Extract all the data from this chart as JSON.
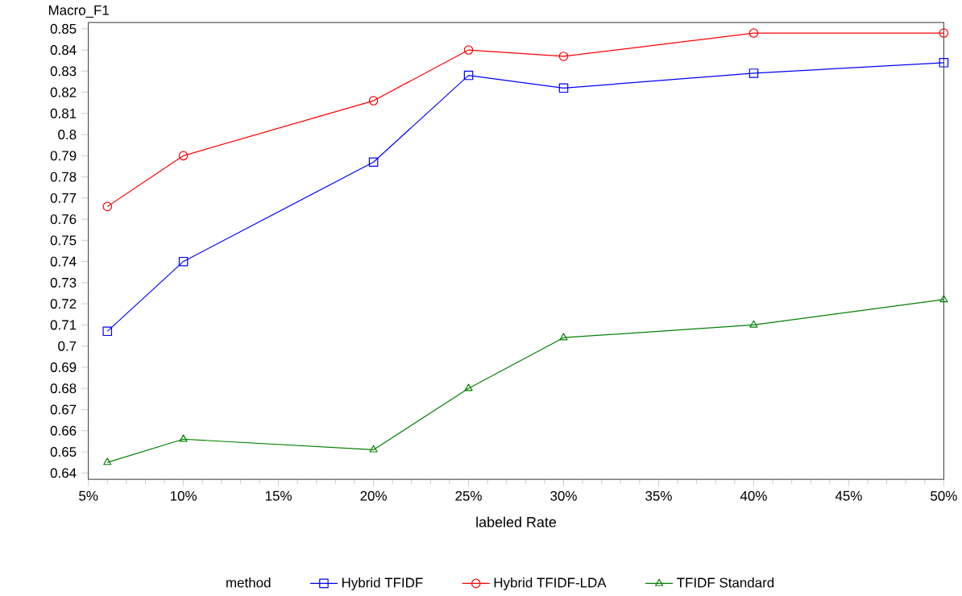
{
  "chart_data": {
    "type": "line",
    "xlabel": "labeled Rate",
    "ylabel": "Macro_F1",
    "legend_title": "method",
    "legend": "bottom",
    "grid": false,
    "x": [
      6,
      10,
      20,
      25,
      30,
      40,
      50
    ],
    "xlim": [
      5,
      50
    ],
    "xticks": [
      {
        "value": 5,
        "label": "5%"
      },
      {
        "value": 10,
        "label": "10%"
      },
      {
        "value": 15,
        "label": "15%"
      },
      {
        "value": 20,
        "label": "20%"
      },
      {
        "value": 25,
        "label": "25%"
      },
      {
        "value": 30,
        "label": "30%"
      },
      {
        "value": 35,
        "label": "35%"
      },
      {
        "value": 40,
        "label": "40%"
      },
      {
        "value": 45,
        "label": "45%"
      },
      {
        "value": 50,
        "label": "50%"
      }
    ],
    "ylim": [
      0.637,
      0.853
    ],
    "yticks": [
      0.64,
      0.65,
      0.66,
      0.67,
      0.68,
      0.69,
      0.7,
      0.71,
      0.72,
      0.73,
      0.74,
      0.75,
      0.76,
      0.77,
      0.78,
      0.79,
      0.8,
      0.81,
      0.82,
      0.83,
      0.84,
      0.85
    ],
    "series": [
      {
        "name": "Hybrid TFIDF",
        "color": "#0000ff",
        "marker": "square",
        "values": [
          0.707,
          0.74,
          0.787,
          0.828,
          0.822,
          0.829,
          0.834
        ]
      },
      {
        "name": "Hybrid TFIDF-LDA",
        "color": "#ff0000",
        "marker": "circle",
        "values": [
          0.766,
          0.79,
          0.816,
          0.84,
          0.837,
          0.848,
          0.848
        ]
      },
      {
        "name": "TFIDF Standard",
        "color": "#008000",
        "marker": "triangle",
        "values": [
          0.645,
          0.656,
          0.651,
          0.68,
          0.704,
          0.71,
          0.722
        ]
      }
    ]
  }
}
